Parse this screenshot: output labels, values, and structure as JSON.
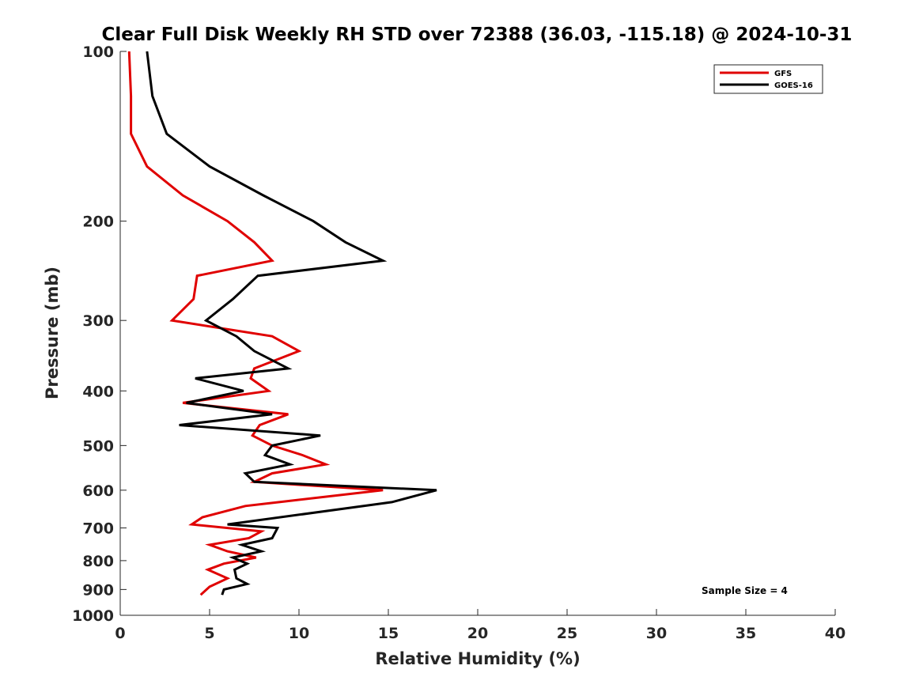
{
  "chart_data": {
    "type": "line",
    "title": "Clear Full Disk Weekly RH STD over 72388 (36.03, -115.18) @ 2024-10-31",
    "xlabel": "Relative Humidity (%)",
    "ylabel": "Pressure (mb)",
    "xlim": [
      0,
      40
    ],
    "ylim": [
      100,
      1000
    ],
    "yscale": "log",
    "y_reversed": true,
    "xticks": [
      0,
      5,
      10,
      15,
      20,
      25,
      30,
      35,
      40
    ],
    "yticks": [
      100,
      200,
      300,
      400,
      500,
      600,
      700,
      800,
      900,
      1000
    ],
    "grid": false,
    "legend_position": "top-right",
    "annotation": "Sample Size = 4",
    "series": [
      {
        "name": "GFS",
        "color": "#e00000",
        "x": [
          0.5,
          0.6,
          0.6,
          1.5,
          3.5,
          6.0,
          7.5,
          8.5,
          4.3,
          4.1,
          2.9,
          8.5,
          10.0,
          7.5,
          7.3,
          8.3,
          3.5,
          9.4,
          7.8,
          7.4,
          8.5,
          10.2,
          11.5,
          8.5,
          7.5,
          14.7,
          7.0,
          4.6,
          4.0,
          7.9,
          7.2,
          5.0,
          6.0,
          7.6,
          5.8,
          4.9,
          6.0,
          5.0,
          4.5
        ],
        "y": [
          100,
          120,
          140,
          160,
          180,
          200,
          218,
          235,
          250,
          275,
          300,
          320,
          340,
          365,
          380,
          400,
          420,
          440,
          460,
          480,
          500,
          520,
          540,
          560,
          580,
          600,
          640,
          670,
          690,
          710,
          730,
          750,
          770,
          790,
          810,
          830,
          860,
          890,
          920
        ]
      },
      {
        "name": "GOES-16",
        "color": "#000000",
        "x": [
          1.5,
          1.8,
          2.6,
          5.0,
          8.0,
          10.8,
          12.6,
          14.7,
          7.7,
          6.3,
          4.8,
          6.5,
          7.5,
          9.4,
          4.2,
          6.9,
          3.7,
          8.5,
          3.3,
          11.2,
          8.5,
          8.1,
          9.5,
          7.0,
          7.5,
          17.7,
          15.2,
          6.0,
          8.8,
          8.5,
          6.8,
          7.9,
          6.3,
          7.1,
          6.4,
          6.5,
          7.1,
          5.8,
          5.7
        ],
        "y": [
          100,
          120,
          140,
          160,
          180,
          200,
          218,
          235,
          250,
          275,
          300,
          320,
          340,
          365,
          380,
          400,
          420,
          440,
          460,
          480,
          500,
          520,
          540,
          560,
          580,
          600,
          630,
          690,
          700,
          730,
          750,
          770,
          790,
          810,
          830,
          860,
          880,
          900,
          920
        ]
      }
    ]
  }
}
